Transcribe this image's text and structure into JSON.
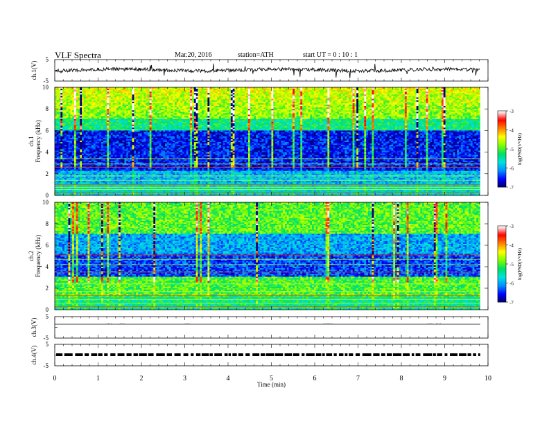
{
  "header": {
    "title": "VLF  Spectra",
    "date": "Mar.20, 2016",
    "station": "station=ATH",
    "start": "start  UT  =    0  : 10 : 1"
  },
  "chart_data": {
    "type": "heatmap",
    "xlabel": "Time  (min)",
    "xlim": [
      0,
      10
    ],
    "xticks": [
      "0",
      "1",
      "2",
      "3",
      "4",
      "5",
      "6",
      "7",
      "8",
      "9",
      "10"
    ],
    "panels": [
      {
        "id": "ch1-waveform",
        "type": "line",
        "ylabel": "ch.1(V)",
        "ylim": [
          -5,
          5
        ],
        "yticks": [
          "5",
          "-5"
        ]
      },
      {
        "id": "ch1-spectrogram",
        "type": "heatmap",
        "ylabel_top": "ch.1",
        "ylabel": "Frequency  (kHz)",
        "ylim": [
          0,
          10
        ],
        "yticks": [
          "0",
          "2",
          "4",
          "6",
          "8",
          "10"
        ]
      },
      {
        "id": "ch2-spectrogram",
        "type": "heatmap",
        "ylabel_top": "ch.2",
        "ylabel": "Frequency  (kHz)",
        "ylim": [
          0,
          10
        ],
        "yticks": [
          "0",
          "2",
          "4",
          "6",
          "8",
          "10"
        ]
      },
      {
        "id": "ch3-waveform",
        "type": "line",
        "ylabel": "ch.3(V)",
        "ylim": [
          -5,
          5
        ],
        "yticks": [
          "5",
          "-5"
        ]
      },
      {
        "id": "ch4-waveform",
        "type": "line",
        "ylabel": "ch.4(V)",
        "ylim": [
          -5,
          5
        ],
        "yticks": [
          "5",
          "-5"
        ]
      }
    ],
    "data_end_min": 9.82,
    "colorbar": {
      "label": "log(PSD(V²/Hz)",
      "range": [
        -7,
        -3
      ],
      "ticks": [
        "-3",
        "-4",
        "-5",
        "-6",
        "-7"
      ],
      "colors": [
        "#000060",
        "#0000ff",
        "#0090ff",
        "#00e0e0",
        "#00e060",
        "#80ff00",
        "#ffff00",
        "#ff8000",
        "#ff0000",
        "#ffffff"
      ]
    }
  }
}
